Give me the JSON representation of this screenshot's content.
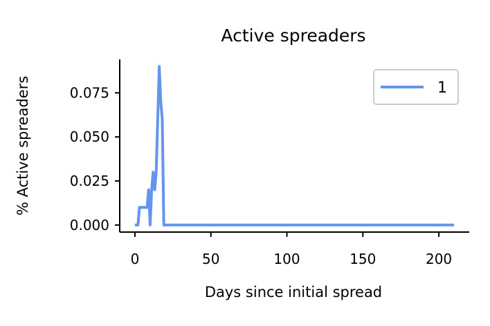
{
  "chart_data": {
    "type": "line",
    "title": "Active spreaders",
    "xlabel": "Days since initial spread",
    "ylabel": "% Active spreaders",
    "xlim": [
      -10,
      220
    ],
    "ylim": [
      -0.004,
      0.094
    ],
    "xticks": [
      0,
      50,
      100,
      150,
      200
    ],
    "yticks": [
      0.0,
      0.025,
      0.05,
      0.075
    ],
    "xtick_labels": [
      "0",
      "50",
      "100",
      "150",
      "200"
    ],
    "ytick_labels": [
      "0.000",
      "0.025",
      "0.050",
      "0.075"
    ],
    "grid": false,
    "legend_position": "top-right",
    "series": [
      {
        "name": "1",
        "color": "#6495ED",
        "x": [
          0,
          2,
          3,
          4,
          5,
          6,
          7,
          8,
          9,
          10,
          11,
          12,
          13,
          14,
          15,
          16,
          17,
          18,
          19,
          20,
          21,
          210
        ],
        "y": [
          0,
          0,
          0.01,
          0.01,
          0.01,
          0.01,
          0.01,
          0.01,
          0.02,
          0,
          0.02,
          0.03,
          0.02,
          0.03,
          0.06,
          0.09,
          0.07,
          0.06,
          0,
          0,
          0,
          0
        ]
      }
    ]
  }
}
